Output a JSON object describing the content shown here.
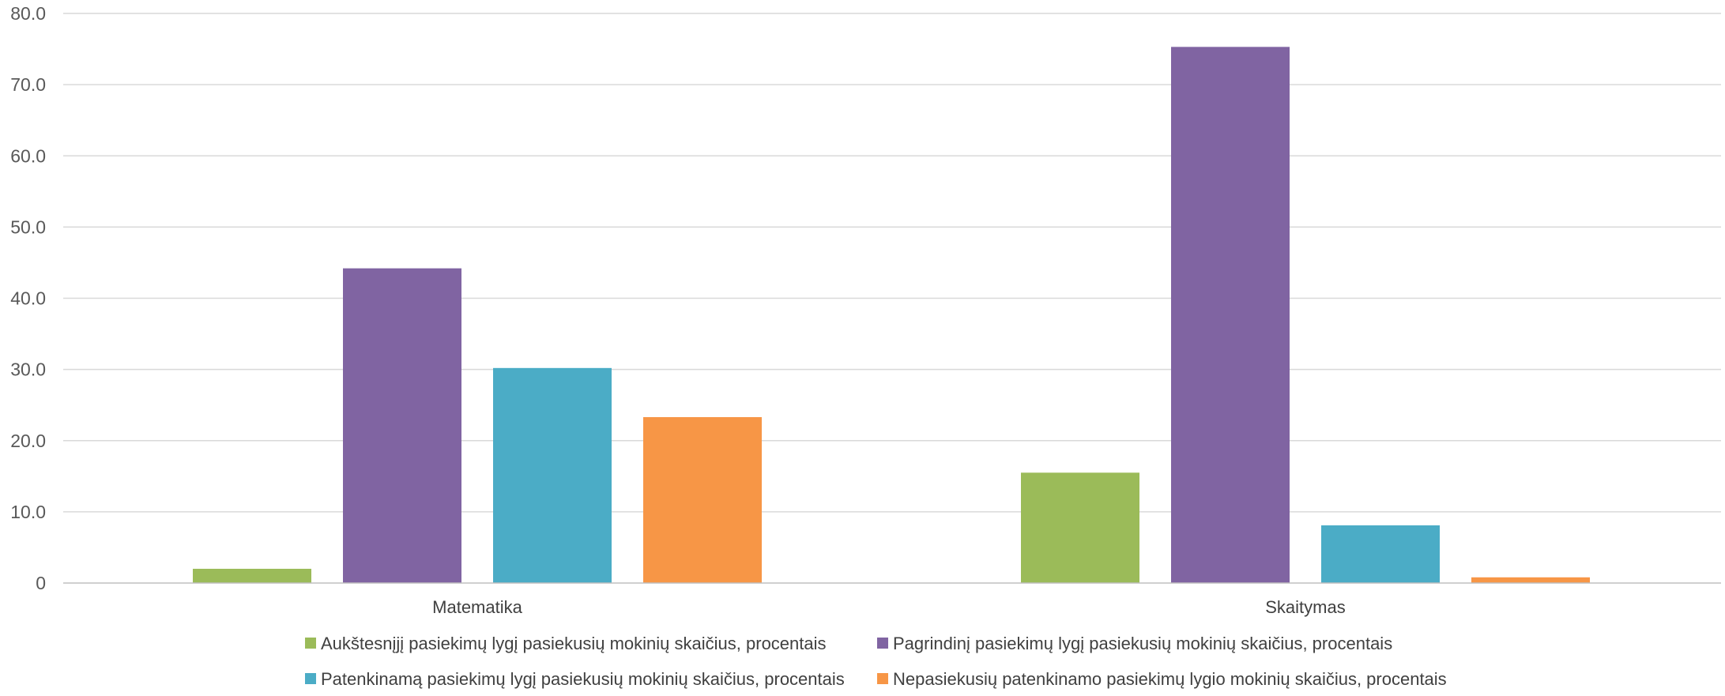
{
  "chart_data": {
    "type": "bar",
    "categories": [
      "Matematika",
      "Skaitymas"
    ],
    "series": [
      {
        "name": "Aukštesnįjį pasiekimų lygį pasiekusių mokinių skaičius, procentais",
        "color": "#9bbb59",
        "values": [
          2.0,
          15.5
        ]
      },
      {
        "name": "Pagrindinį pasiekimų lygį pasiekusių mokinių skaičius, procentais",
        "color": "#8064a2",
        "values": [
          44.2,
          75.3
        ]
      },
      {
        "name": "Patenkinamą pasiekimų lygį pasiekusių mokinių skaičius, procentais",
        "color": "#4bacc6",
        "values": [
          30.2,
          8.1
        ]
      },
      {
        "name": "Nepasiekusių patenkinamo pasiekimų lygio mokinių skaičius, procentais",
        "color": "#f79646",
        "values": [
          23.3,
          0.8
        ]
      }
    ],
    "y_ticks": [
      "0",
      "10.0",
      "20.0",
      "30.0",
      "40.0",
      "50.0",
      "60.0",
      "70.0",
      "80.0"
    ],
    "ylim": [
      0,
      80
    ],
    "grid": true,
    "legend_position": "bottom",
    "title": "",
    "xlabel": "",
    "ylabel": ""
  }
}
